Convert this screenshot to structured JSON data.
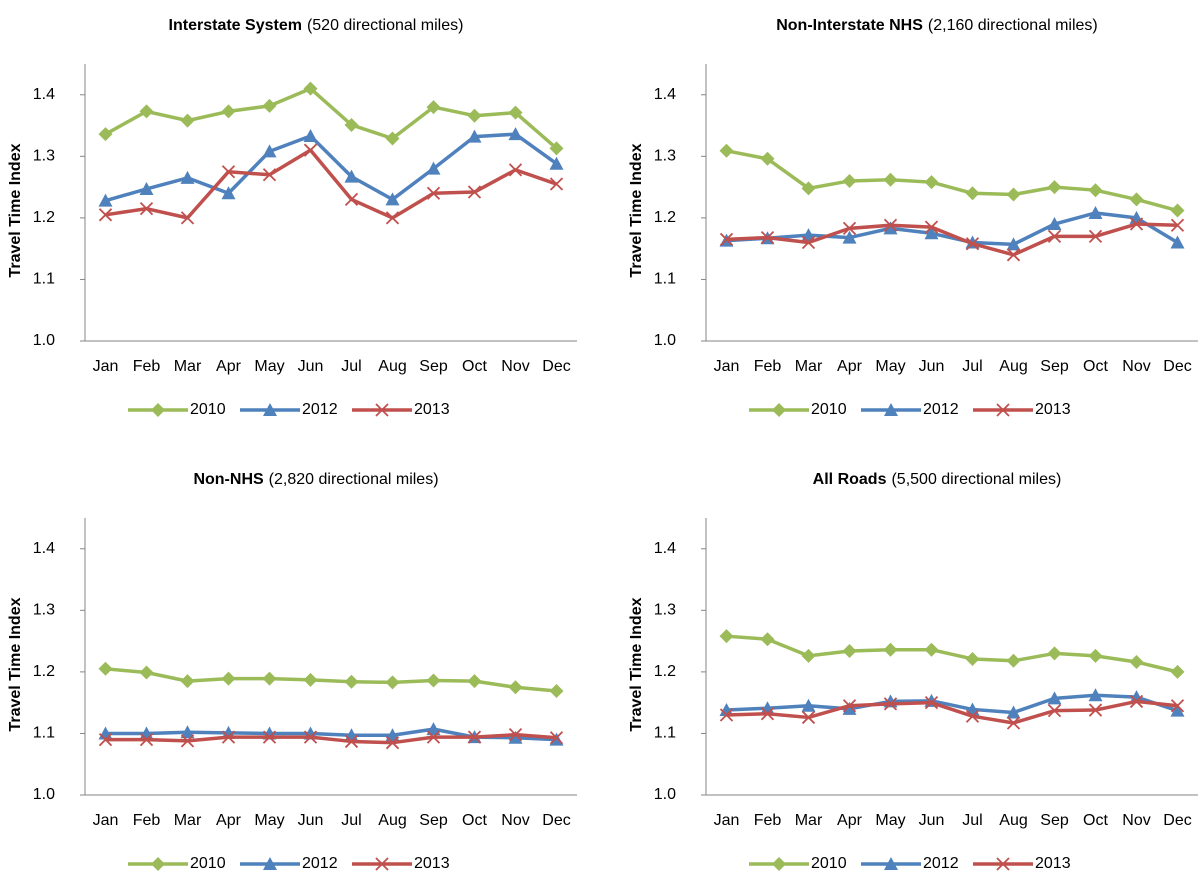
{
  "chart_data": [
    {
      "type": "line",
      "title": "Interstate System",
      "subtitle": "(520 directional miles)",
      "y_label": "Travel Time Index",
      "categories": [
        "Jan",
        "Feb",
        "Mar",
        "Apr",
        "May",
        "Jun",
        "Jul",
        "Aug",
        "Sep",
        "Oct",
        "Nov",
        "Dec"
      ],
      "ylim": [
        1,
        1.45
      ],
      "yticks": [
        {
          "value": 1,
          "label": "1.0"
        },
        1.1,
        1.2,
        1.3,
        1.4
      ],
      "grid": false,
      "legend": "bottom",
      "series": [
        {
          "name": "2010",
          "color": "#9bbb59",
          "marker": "diamond",
          "values": [
            1.336,
            1.373,
            1.358,
            1.373,
            1.382,
            1.41,
            1.351,
            1.329,
            1.38,
            1.366,
            1.371,
            1.313
          ]
        },
        {
          "name": "2012",
          "color": "#4f81bd",
          "marker": "triangle",
          "values": [
            1.228,
            1.247,
            1.265,
            1.24,
            1.308,
            1.333,
            1.267,
            1.23,
            1.28,
            1.332,
            1.336,
            1.288
          ]
        },
        {
          "name": "2013",
          "color": "#c0504d",
          "marker": "x",
          "values": [
            1.205,
            1.215,
            1.2,
            1.275,
            1.27,
            1.31,
            1.23,
            1.2,
            1.24,
            1.242,
            1.278,
            1.255
          ]
        }
      ]
    },
    {
      "type": "line",
      "title": "Non-Interstate NHS",
      "subtitle": "(2,160 directional miles)",
      "y_label": "Travel Time Index",
      "categories": [
        "Jan",
        "Feb",
        "Mar",
        "Apr",
        "May",
        "Jun",
        "Jul",
        "Aug",
        "Sep",
        "Oct",
        "Nov",
        "Dec"
      ],
      "ylim": [
        1,
        1.45
      ],
      "yticks": [
        {
          "value": 1,
          "label": "1.0"
        },
        1.1,
        1.2,
        1.3,
        1.4
      ],
      "grid": false,
      "legend": "bottom",
      "series": [
        {
          "name": "2010",
          "color": "#9bbb59",
          "marker": "diamond",
          "values": [
            1.309,
            1.296,
            1.248,
            1.26,
            1.262,
            1.258,
            1.24,
            1.238,
            1.25,
            1.245,
            1.23,
            1.212
          ]
        },
        {
          "name": "2012",
          "color": "#4f81bd",
          "marker": "triangle",
          "values": [
            1.163,
            1.167,
            1.172,
            1.168,
            1.183,
            1.175,
            1.16,
            1.157,
            1.19,
            1.208,
            1.2,
            1.16
          ]
        },
        {
          "name": "2013",
          "color": "#c0504d",
          "marker": "x",
          "values": [
            1.165,
            1.168,
            1.16,
            1.183,
            1.188,
            1.185,
            1.158,
            1.14,
            1.17,
            1.17,
            1.19,
            1.188
          ]
        }
      ]
    },
    {
      "type": "line",
      "title": "Non-NHS",
      "subtitle": "(2,820 directional miles)",
      "y_label": "Travel Time Index",
      "categories": [
        "Jan",
        "Feb",
        "Mar",
        "Apr",
        "May",
        "Jun",
        "Jul",
        "Aug",
        "Sep",
        "Oct",
        "Nov",
        "Dec"
      ],
      "ylim": [
        1,
        1.45
      ],
      "yticks": [
        {
          "value": 1,
          "label": "1.0"
        },
        1.1,
        1.2,
        1.3,
        1.4
      ],
      "grid": false,
      "legend": "bottom",
      "series": [
        {
          "name": "2010",
          "color": "#9bbb59",
          "marker": "diamond",
          "values": [
            1.205,
            1.199,
            1.185,
            1.189,
            1.189,
            1.187,
            1.184,
            1.183,
            1.186,
            1.185,
            1.175,
            1.169
          ]
        },
        {
          "name": "2012",
          "color": "#4f81bd",
          "marker": "triangle",
          "values": [
            1.1,
            1.1,
            1.102,
            1.101,
            1.1,
            1.1,
            1.097,
            1.097,
            1.107,
            1.094,
            1.093,
            1.09
          ]
        },
        {
          "name": "2013",
          "color": "#c0504d",
          "marker": "x",
          "values": [
            1.09,
            1.09,
            1.088,
            1.094,
            1.094,
            1.094,
            1.087,
            1.085,
            1.094,
            1.094,
            1.098,
            1.093
          ]
        }
      ]
    },
    {
      "type": "line",
      "title": "All Roads",
      "subtitle": "(5,500 directional miles)",
      "y_label": "Travel Time Index",
      "categories": [
        "Jan",
        "Feb",
        "Mar",
        "Apr",
        "May",
        "Jun",
        "Jul",
        "Aug",
        "Sep",
        "Oct",
        "Nov",
        "Dec"
      ],
      "ylim": [
        1,
        1.45
      ],
      "yticks": [
        {
          "value": 1,
          "label": "1.0"
        },
        1.1,
        1.2,
        1.3,
        1.4
      ],
      "grid": false,
      "legend": "bottom",
      "series": [
        {
          "name": "2010",
          "color": "#9bbb59",
          "marker": "diamond",
          "values": [
            1.258,
            1.253,
            1.226,
            1.234,
            1.236,
            1.236,
            1.221,
            1.218,
            1.23,
            1.226,
            1.216,
            1.2
          ]
        },
        {
          "name": "2012",
          "color": "#4f81bd",
          "marker": "triangle",
          "values": [
            1.138,
            1.141,
            1.145,
            1.14,
            1.152,
            1.153,
            1.139,
            1.134,
            1.157,
            1.162,
            1.159,
            1.137
          ]
        },
        {
          "name": "2013",
          "color": "#c0504d",
          "marker": "x",
          "values": [
            1.13,
            1.132,
            1.126,
            1.145,
            1.148,
            1.15,
            1.128,
            1.117,
            1.137,
            1.138,
            1.152,
            1.145
          ]
        }
      ]
    }
  ]
}
